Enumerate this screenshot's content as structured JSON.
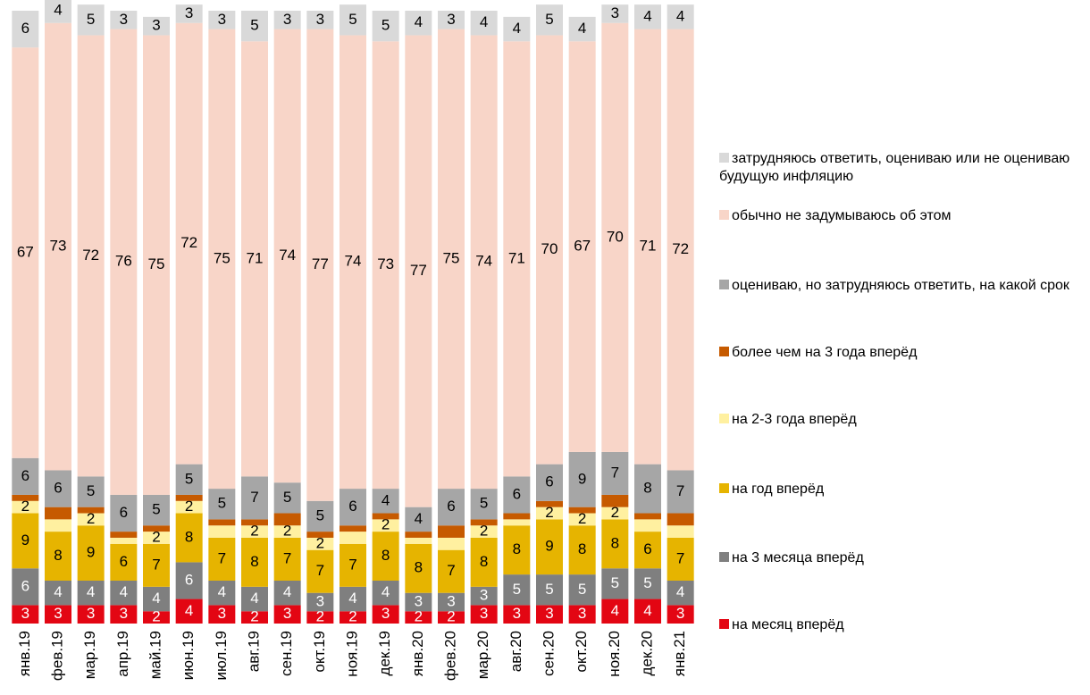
{
  "chart_data": {
    "type": "stacked_bar",
    "categories": [
      "янв.19",
      "фев.19",
      "мар.19",
      "апр.19",
      "май.19",
      "июн.19",
      "июл.19",
      "авг.19",
      "сен.19",
      "окт.19",
      "ноя.19",
      "дек.19",
      "янв.20",
      "фев.20",
      "мар.20",
      "авг.20",
      "сен.20",
      "окт.20",
      "ноя.20",
      "дек.20",
      "янв.21"
    ],
    "ylim": [
      0,
      100
    ],
    "series": [
      {
        "name": "на месяц вперёд",
        "color": "#e30613",
        "values": [
          3,
          3,
          3,
          3,
          2,
          4,
          3,
          2,
          3,
          2,
          2,
          3,
          2,
          2,
          3,
          3,
          3,
          3,
          4,
          4,
          3
        ]
      },
      {
        "name": "на 3 месяца вперёд",
        "color": "#7f7f7f",
        "values": [
          6,
          4,
          4,
          4,
          4,
          6,
          4,
          4,
          4,
          3,
          4,
          4,
          3,
          3,
          3,
          5,
          5,
          5,
          5,
          5,
          4
        ]
      },
      {
        "name": "на год вперёд",
        "color": "#e6b400",
        "values": [
          9,
          8,
          9,
          6,
          7,
          8,
          7,
          8,
          7,
          7,
          7,
          8,
          8,
          7,
          8,
          8,
          9,
          8,
          8,
          6,
          7
        ]
      },
      {
        "name": "на 2-3 года вперёд",
        "color": "#fff0a0",
        "values": [
          2,
          2,
          2,
          1,
          2,
          2,
          2,
          2,
          2,
          2,
          2,
          2,
          1,
          2,
          2,
          1,
          2,
          2,
          2,
          2,
          2
        ],
        "value_labels": [
          "2",
          null,
          "2",
          null,
          "2",
          "2",
          null,
          "2",
          "2",
          "2",
          null,
          "2",
          null,
          null,
          "2",
          null,
          "2",
          "2",
          "2",
          null,
          null
        ]
      },
      {
        "name": "более чем на 3 года вперёд",
        "color": "#c65a00",
        "values": [
          1,
          2,
          1,
          1,
          1,
          1,
          1,
          1,
          2,
          1,
          1,
          1,
          1,
          2,
          1,
          1,
          1,
          1,
          2,
          1,
          2
        ],
        "data_labels": false
      },
      {
        "name": "оцениваю, но затрудняюсь ответить, на какой срок",
        "color": "#a6a6a6",
        "values": [
          6,
          6,
          5,
          6,
          5,
          5,
          5,
          7,
          5,
          5,
          6,
          4,
          4,
          6,
          5,
          6,
          6,
          9,
          7,
          8,
          7
        ]
      },
      {
        "name": "обычно не задумываюсь об этом",
        "color": "#f8d5c8",
        "values": [
          67,
          73,
          72,
          76,
          75,
          72,
          75,
          71,
          74,
          77,
          74,
          73,
          77,
          75,
          74,
          71,
          70,
          67,
          70,
          71,
          72
        ]
      },
      {
        "name": "затрудняюсь ответить, оцениваю или не оцениваю будущую инфляцию",
        "color": "#d9d9d9",
        "values": [
          6,
          4,
          5,
          3,
          3,
          3,
          3,
          5,
          3,
          3,
          5,
          5,
          4,
          3,
          4,
          4,
          5,
          4,
          3,
          4,
          4
        ]
      }
    ]
  }
}
